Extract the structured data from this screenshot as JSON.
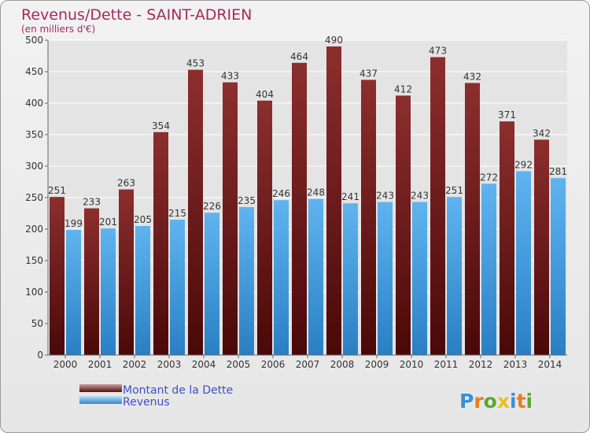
{
  "chart_data": {
    "type": "bar",
    "title": "Revenus/Dette - SAINT-ADRIEN",
    "subtitle": "(en milliers d'€)",
    "categories": [
      "2000",
      "2001",
      "2002",
      "2003",
      "2004",
      "2005",
      "2006",
      "2007",
      "2008",
      "2009",
      "2010",
      "2011",
      "2012",
      "2013",
      "2014"
    ],
    "series": [
      {
        "name": "Montant de la Dette",
        "color": "#7a1f1f",
        "values": [
          251,
          233,
          263,
          354,
          453,
          433,
          404,
          464,
          490,
          437,
          412,
          473,
          432,
          371,
          342
        ]
      },
      {
        "name": "Revenus",
        "color": "#4aa3e6",
        "values": [
          199,
          201,
          205,
          215,
          226,
          235,
          246,
          248,
          241,
          243,
          243,
          251,
          272,
          292,
          281
        ]
      }
    ],
    "ylim": [
      0,
      500
    ],
    "yticks": [
      0,
      50,
      100,
      150,
      200,
      250,
      300,
      350,
      400,
      450,
      500
    ],
    "grid": true,
    "legend": "bottom-left"
  },
  "watermark": "Proxiti"
}
